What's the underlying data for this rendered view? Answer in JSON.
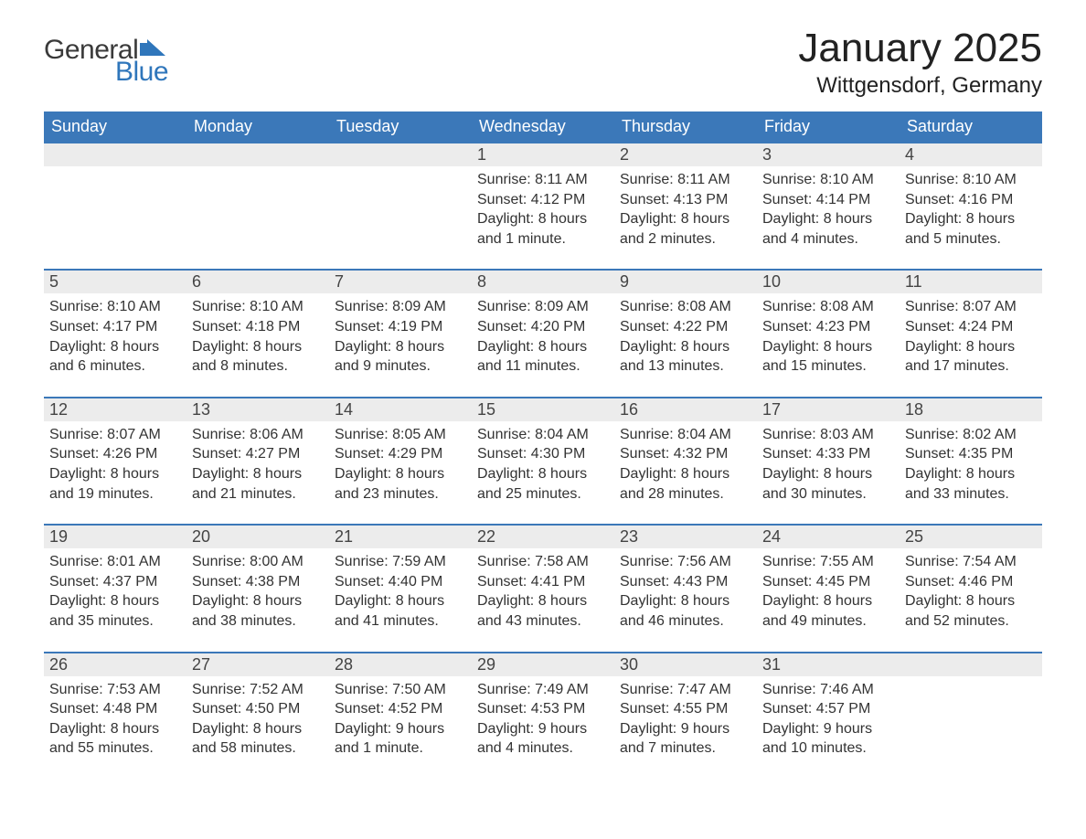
{
  "logo": {
    "general": "General",
    "blue": "Blue"
  },
  "header": {
    "month_title": "January 2025",
    "location": "Wittgensdorf, Germany"
  },
  "colors": {
    "brand_blue": "#3b78b9",
    "header_bg": "#3b78b9",
    "header_text": "#ffffff",
    "daynum_bg": "#ececec",
    "daynum_border": "#3b78b9",
    "body_text": "#333333",
    "page_bg": "#ffffff"
  },
  "calendar": {
    "day_headers": [
      "Sunday",
      "Monday",
      "Tuesday",
      "Wednesday",
      "Thursday",
      "Friday",
      "Saturday"
    ],
    "labels": {
      "sunrise": "Sunrise:",
      "sunset": "Sunset:",
      "daylight": "Daylight:"
    },
    "weeks": [
      [
        null,
        null,
        null,
        {
          "n": "1",
          "sunrise": "8:11 AM",
          "sunset": "4:12 PM",
          "daylight": "8 hours and 1 minute."
        },
        {
          "n": "2",
          "sunrise": "8:11 AM",
          "sunset": "4:13 PM",
          "daylight": "8 hours and 2 minutes."
        },
        {
          "n": "3",
          "sunrise": "8:10 AM",
          "sunset": "4:14 PM",
          "daylight": "8 hours and 4 minutes."
        },
        {
          "n": "4",
          "sunrise": "8:10 AM",
          "sunset": "4:16 PM",
          "daylight": "8 hours and 5 minutes."
        }
      ],
      [
        {
          "n": "5",
          "sunrise": "8:10 AM",
          "sunset": "4:17 PM",
          "daylight": "8 hours and 6 minutes."
        },
        {
          "n": "6",
          "sunrise": "8:10 AM",
          "sunset": "4:18 PM",
          "daylight": "8 hours and 8 minutes."
        },
        {
          "n": "7",
          "sunrise": "8:09 AM",
          "sunset": "4:19 PM",
          "daylight": "8 hours and 9 minutes."
        },
        {
          "n": "8",
          "sunrise": "8:09 AM",
          "sunset": "4:20 PM",
          "daylight": "8 hours and 11 minutes."
        },
        {
          "n": "9",
          "sunrise": "8:08 AM",
          "sunset": "4:22 PM",
          "daylight": "8 hours and 13 minutes."
        },
        {
          "n": "10",
          "sunrise": "8:08 AM",
          "sunset": "4:23 PM",
          "daylight": "8 hours and 15 minutes."
        },
        {
          "n": "11",
          "sunrise": "8:07 AM",
          "sunset": "4:24 PM",
          "daylight": "8 hours and 17 minutes."
        }
      ],
      [
        {
          "n": "12",
          "sunrise": "8:07 AM",
          "sunset": "4:26 PM",
          "daylight": "8 hours and 19 minutes."
        },
        {
          "n": "13",
          "sunrise": "8:06 AM",
          "sunset": "4:27 PM",
          "daylight": "8 hours and 21 minutes."
        },
        {
          "n": "14",
          "sunrise": "8:05 AM",
          "sunset": "4:29 PM",
          "daylight": "8 hours and 23 minutes."
        },
        {
          "n": "15",
          "sunrise": "8:04 AM",
          "sunset": "4:30 PM",
          "daylight": "8 hours and 25 minutes."
        },
        {
          "n": "16",
          "sunrise": "8:04 AM",
          "sunset": "4:32 PM",
          "daylight": "8 hours and 28 minutes."
        },
        {
          "n": "17",
          "sunrise": "8:03 AM",
          "sunset": "4:33 PM",
          "daylight": "8 hours and 30 minutes."
        },
        {
          "n": "18",
          "sunrise": "8:02 AM",
          "sunset": "4:35 PM",
          "daylight": "8 hours and 33 minutes."
        }
      ],
      [
        {
          "n": "19",
          "sunrise": "8:01 AM",
          "sunset": "4:37 PM",
          "daylight": "8 hours and 35 minutes."
        },
        {
          "n": "20",
          "sunrise": "8:00 AM",
          "sunset": "4:38 PM",
          "daylight": "8 hours and 38 minutes."
        },
        {
          "n": "21",
          "sunrise": "7:59 AM",
          "sunset": "4:40 PM",
          "daylight": "8 hours and 41 minutes."
        },
        {
          "n": "22",
          "sunrise": "7:58 AM",
          "sunset": "4:41 PM",
          "daylight": "8 hours and 43 minutes."
        },
        {
          "n": "23",
          "sunrise": "7:56 AM",
          "sunset": "4:43 PM",
          "daylight": "8 hours and 46 minutes."
        },
        {
          "n": "24",
          "sunrise": "7:55 AM",
          "sunset": "4:45 PM",
          "daylight": "8 hours and 49 minutes."
        },
        {
          "n": "25",
          "sunrise": "7:54 AM",
          "sunset": "4:46 PM",
          "daylight": "8 hours and 52 minutes."
        }
      ],
      [
        {
          "n": "26",
          "sunrise": "7:53 AM",
          "sunset": "4:48 PM",
          "daylight": "8 hours and 55 minutes."
        },
        {
          "n": "27",
          "sunrise": "7:52 AM",
          "sunset": "4:50 PM",
          "daylight": "8 hours and 58 minutes."
        },
        {
          "n": "28",
          "sunrise": "7:50 AM",
          "sunset": "4:52 PM",
          "daylight": "9 hours and 1 minute."
        },
        {
          "n": "29",
          "sunrise": "7:49 AM",
          "sunset": "4:53 PM",
          "daylight": "9 hours and 4 minutes."
        },
        {
          "n": "30",
          "sunrise": "7:47 AM",
          "sunset": "4:55 PM",
          "daylight": "9 hours and 7 minutes."
        },
        {
          "n": "31",
          "sunrise": "7:46 AM",
          "sunset": "4:57 PM",
          "daylight": "9 hours and 10 minutes."
        },
        null
      ]
    ]
  }
}
